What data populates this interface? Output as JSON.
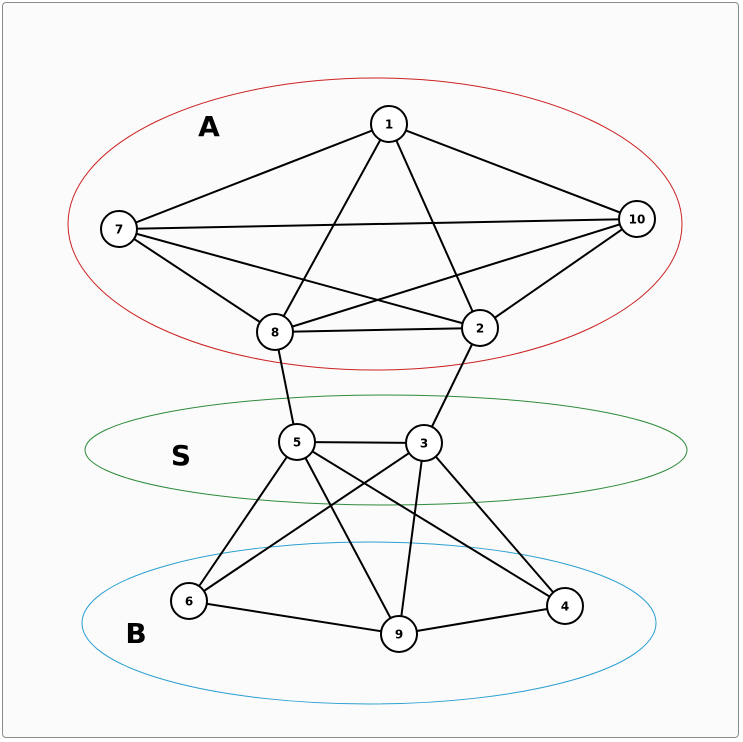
{
  "diagram": {
    "regions": [
      {
        "id": "A",
        "label": "A",
        "color": "#cc2222"
      },
      {
        "id": "S",
        "label": "S",
        "color": "#2e8b3a"
      },
      {
        "id": "B",
        "label": "B",
        "color": "#2a9fd0"
      }
    ],
    "nodes": [
      {
        "id": "1",
        "label": "1",
        "region": "A"
      },
      {
        "id": "2",
        "label": "2",
        "region": "A"
      },
      {
        "id": "7",
        "label": "7",
        "region": "A"
      },
      {
        "id": "8",
        "label": "8",
        "region": "A"
      },
      {
        "id": "10",
        "label": "10",
        "region": "A"
      },
      {
        "id": "3",
        "label": "3",
        "region": "S"
      },
      {
        "id": "5",
        "label": "5",
        "region": "S"
      },
      {
        "id": "4",
        "label": "4",
        "region": "B"
      },
      {
        "id": "6",
        "label": "6",
        "region": "B"
      },
      {
        "id": "9",
        "label": "9",
        "region": "B"
      }
    ],
    "edges": [
      [
        "1",
        "7"
      ],
      [
        "1",
        "10"
      ],
      [
        "1",
        "8"
      ],
      [
        "1",
        "2"
      ],
      [
        "7",
        "10"
      ],
      [
        "7",
        "8"
      ],
      [
        "7",
        "2"
      ],
      [
        "8",
        "10"
      ],
      [
        "8",
        "2"
      ],
      [
        "2",
        "10"
      ],
      [
        "8",
        "5"
      ],
      [
        "2",
        "3"
      ],
      [
        "5",
        "3"
      ],
      [
        "5",
        "6"
      ],
      [
        "5",
        "9"
      ],
      [
        "5",
        "4"
      ],
      [
        "3",
        "6"
      ],
      [
        "3",
        "9"
      ],
      [
        "3",
        "4"
      ],
      [
        "6",
        "9"
      ],
      [
        "9",
        "4"
      ]
    ]
  }
}
